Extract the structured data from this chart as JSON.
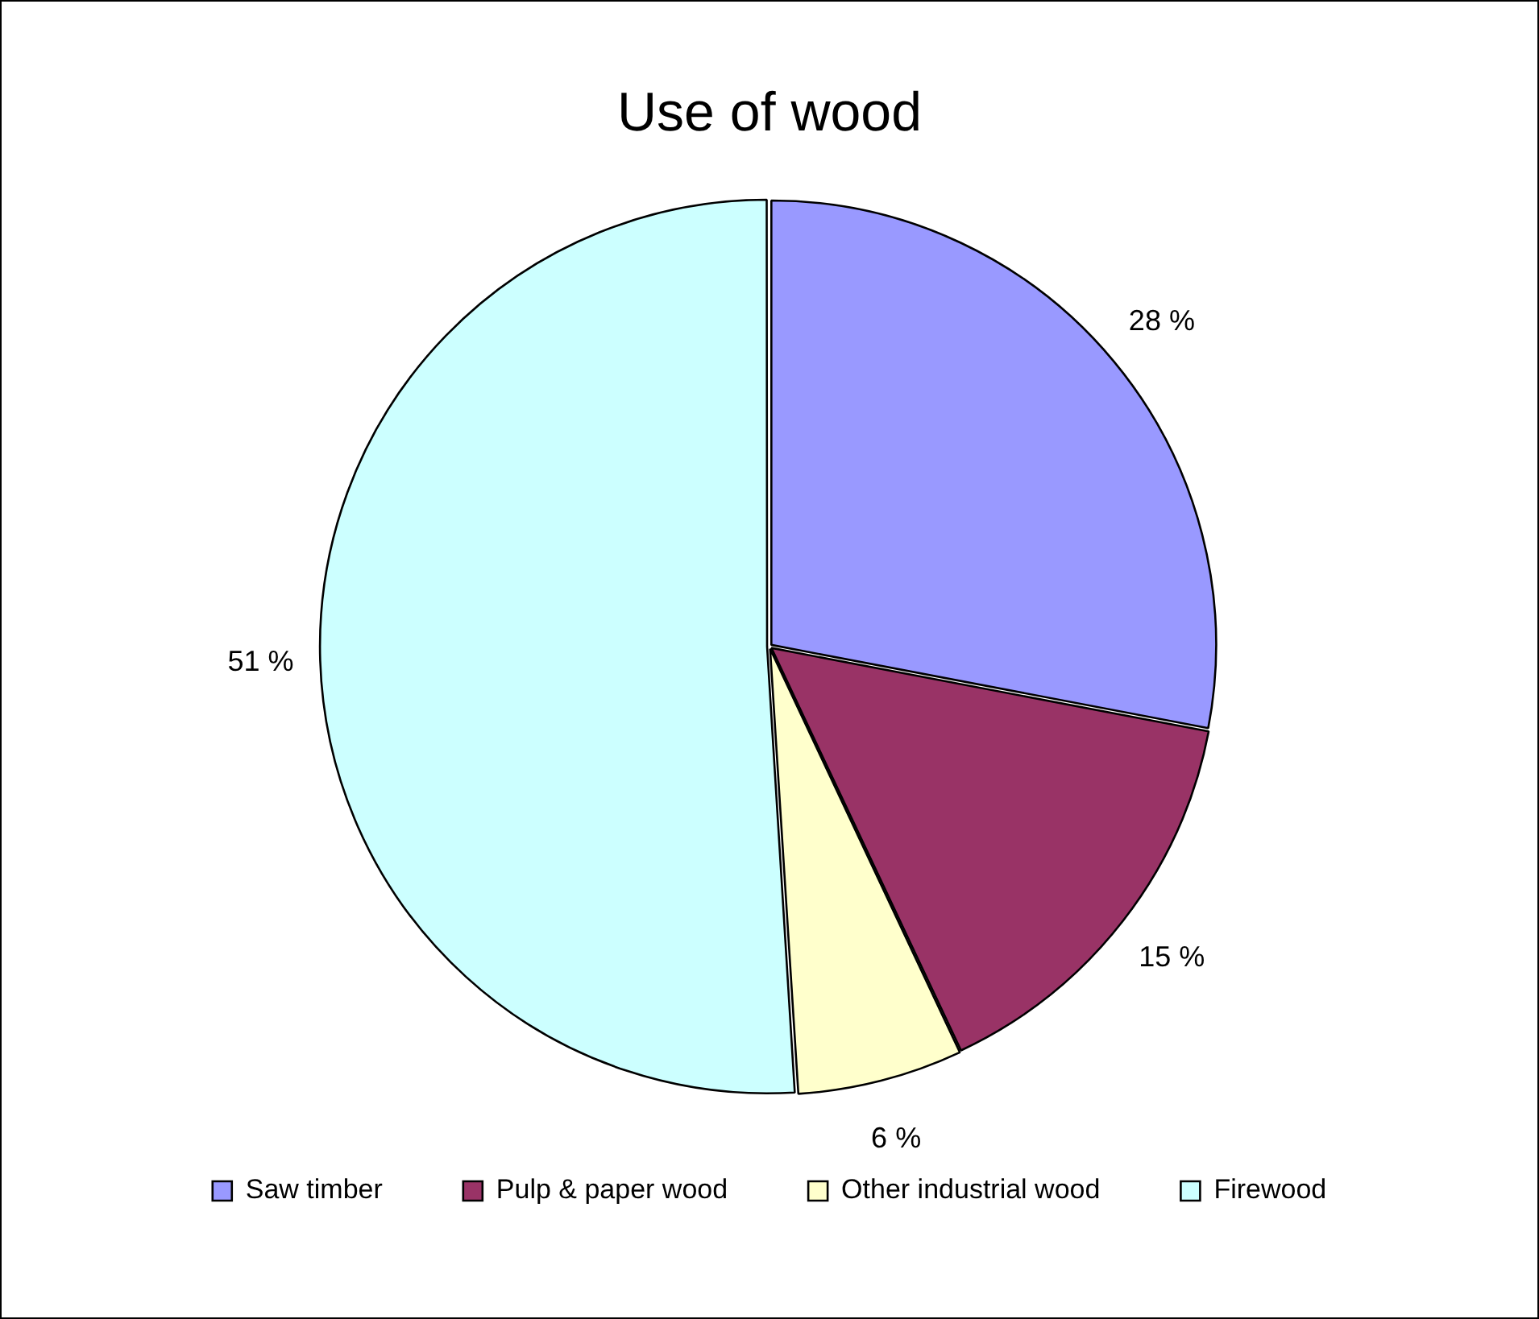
{
  "chart_data": {
    "type": "pie",
    "title": "Use of wood",
    "categories": [
      "Saw timber",
      "Pulp & paper wood",
      "Other industrial wood",
      "Firewood"
    ],
    "values": [
      28,
      15,
      6,
      51
    ],
    "colors": [
      "#9999ff",
      "#993366",
      "#ffffcc",
      "#ccffff"
    ],
    "value_labels": [
      "28 %",
      "15 %",
      "6 %",
      "51 %"
    ],
    "legend": "bottom"
  }
}
